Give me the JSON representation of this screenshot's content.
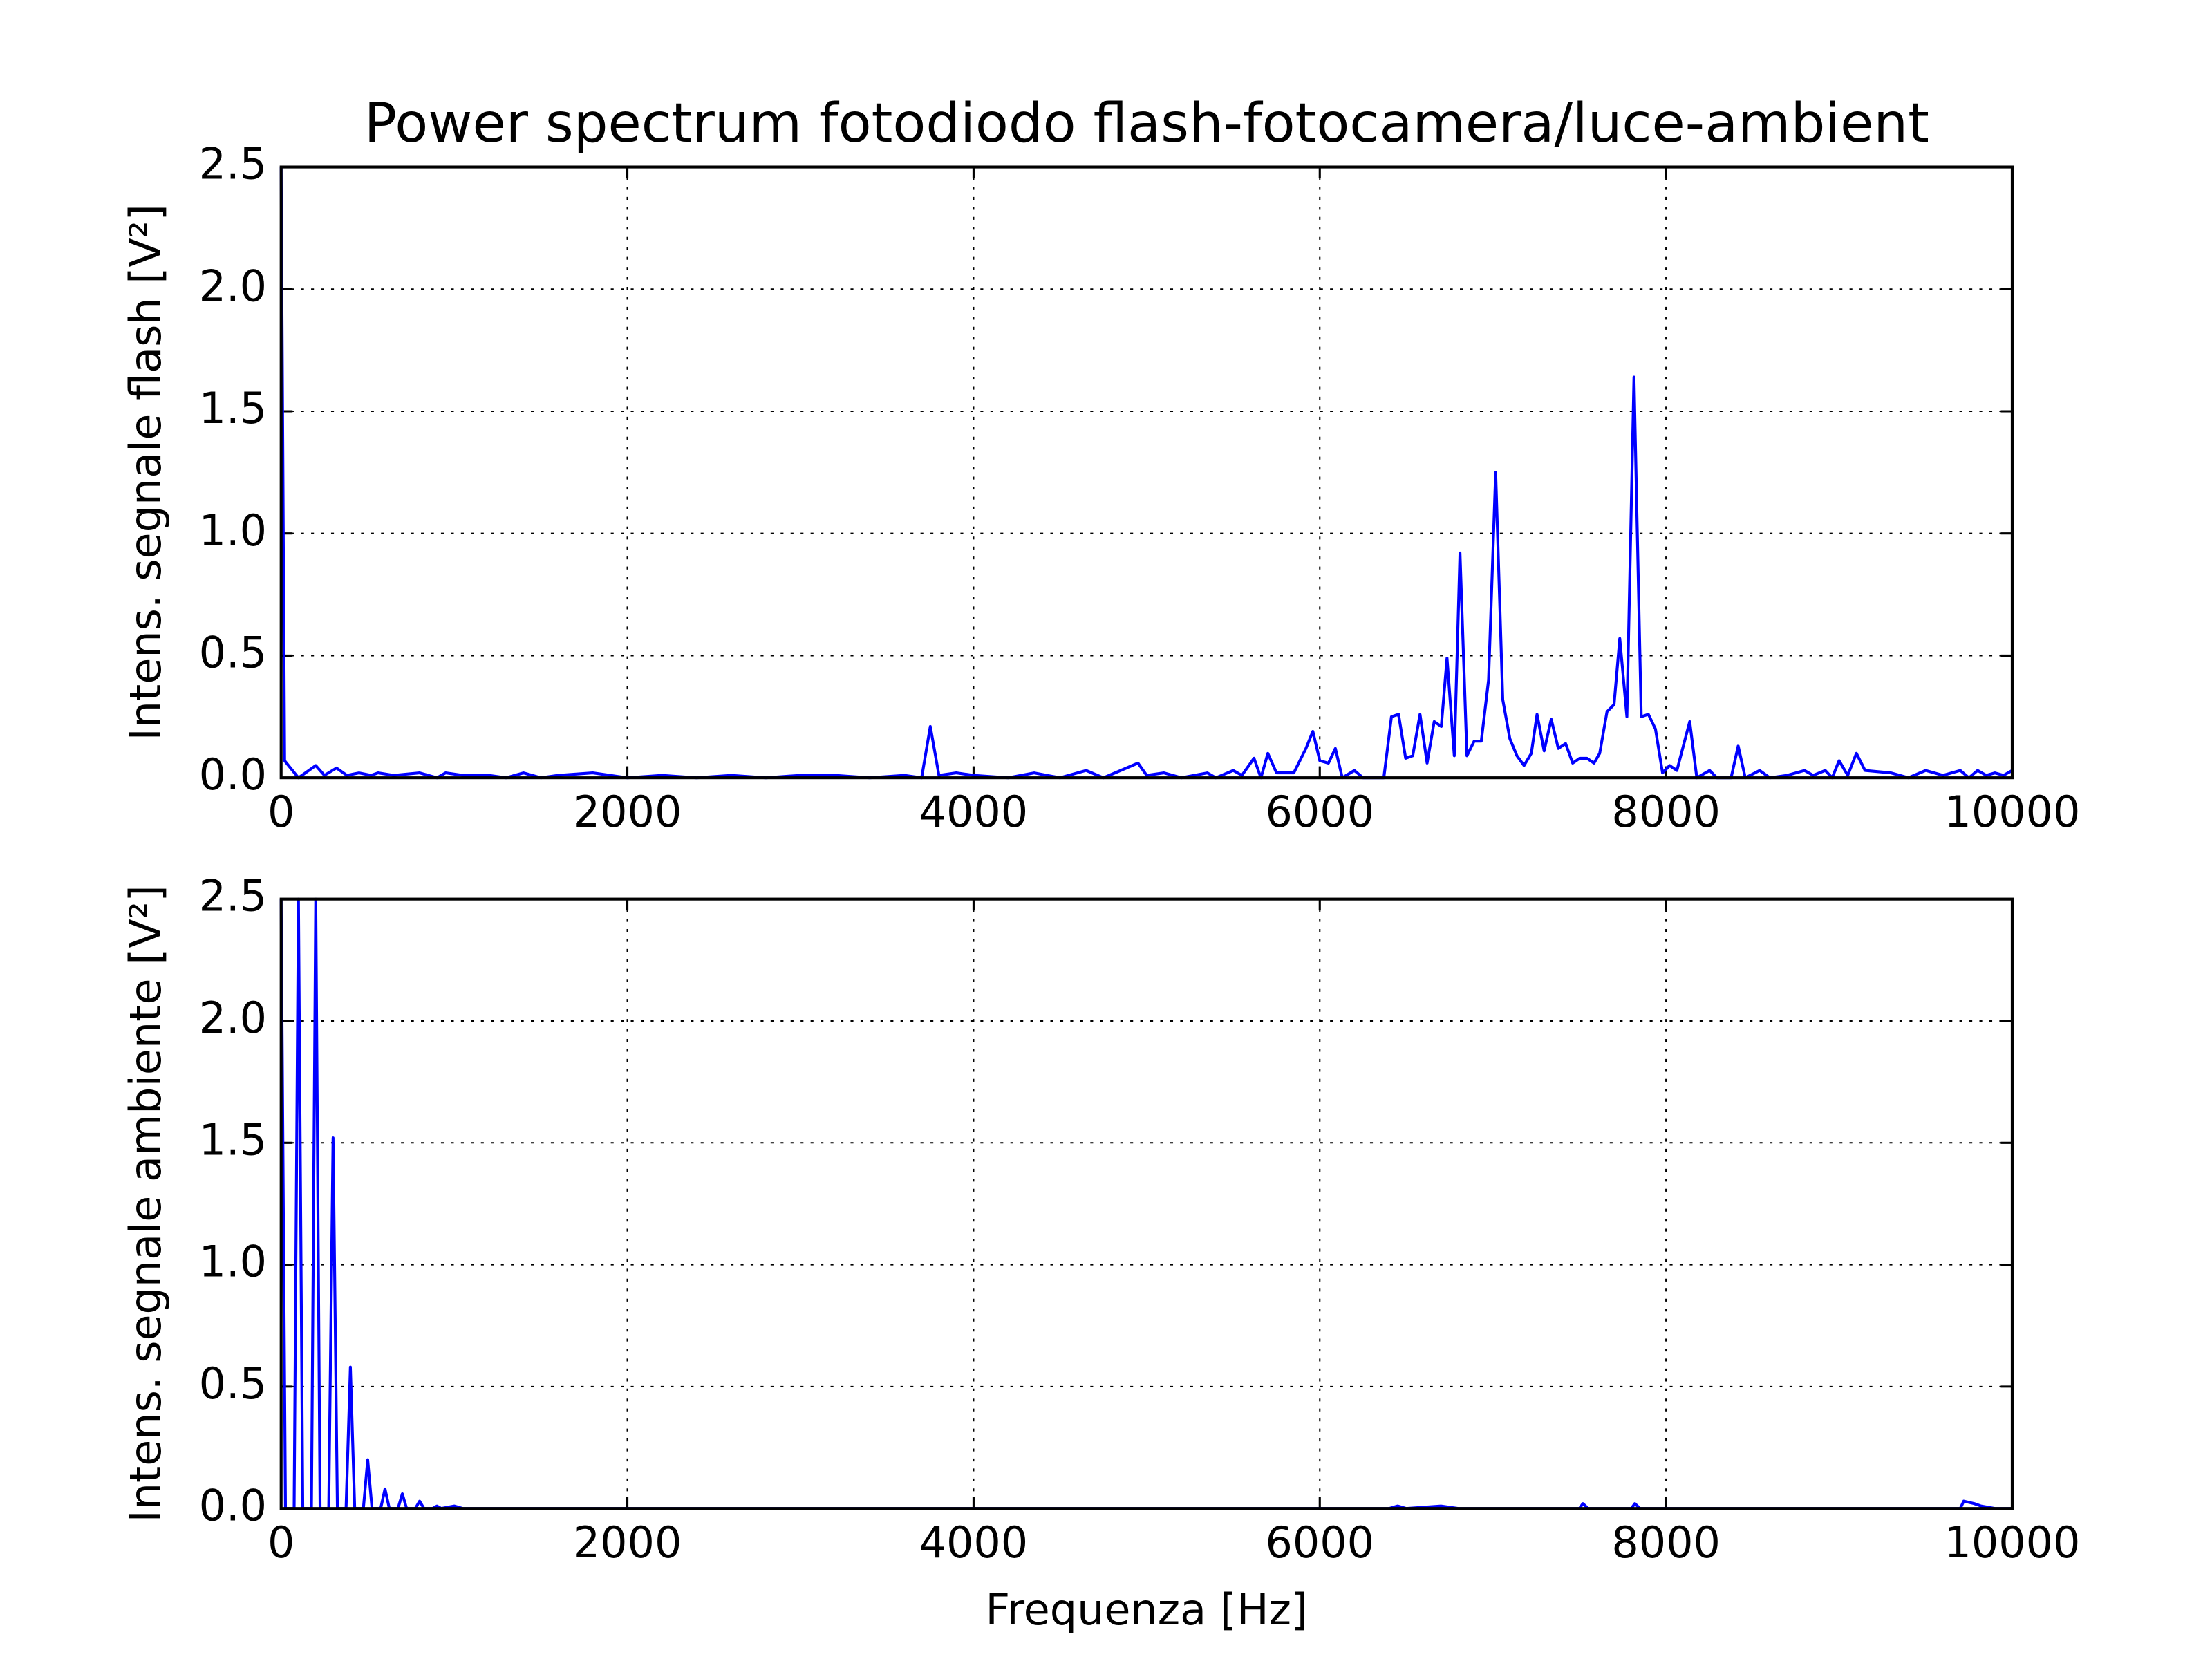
{
  "chart_data": [
    {
      "type": "line",
      "title": "Power spectrum fotodiodo flash-fotocamera/luce-ambient",
      "ylabel": "Intens. segnale flash [V²]",
      "x": [
        0,
        20,
        100,
        200,
        250,
        320,
        380,
        450,
        520,
        560,
        650,
        800,
        900,
        950,
        1050,
        1200,
        1300,
        1400,
        1500,
        1600,
        1800,
        2000,
        2200,
        2400,
        2600,
        2800,
        3000,
        3200,
        3400,
        3600,
        3700,
        3750,
        3800,
        3900,
        4000,
        4200,
        4350,
        4500,
        4650,
        4750,
        4950,
        5000,
        5100,
        5200,
        5350,
        5400,
        5500,
        5550,
        5620,
        5660,
        5700,
        5750,
        5850,
        5920,
        5960,
        6000,
        6050,
        6090,
        6130,
        6200,
        6250,
        6370,
        6414,
        6455,
        6496,
        6537,
        6579,
        6620,
        6661,
        6702,
        6735,
        6777,
        6810,
        6850,
        6892,
        6933,
        6975,
        7016,
        7057,
        7098,
        7139,
        7180,
        7222,
        7255,
        7296,
        7337,
        7378,
        7420,
        7461,
        7502,
        7543,
        7584,
        7617,
        7659,
        7700,
        7733,
        7774,
        7815,
        7857,
        7898,
        7939,
        7980,
        8021,
        8063,
        8137,
        8178,
        8252,
        8294,
        8376,
        8417,
        8458,
        8541,
        8600,
        8700,
        8800,
        8850,
        8920,
        8960,
        9000,
        9050,
        9100,
        9150,
        9300,
        9400,
        9500,
        9600,
        9700,
        9750,
        9800,
        9850,
        9900,
        9950,
        10000
      ],
      "series": [
        {
          "name": "flash",
          "color": "#0000ff",
          "values": [
            2.5,
            0.07,
            0,
            0.05,
            0.01,
            0.04,
            0.01,
            0.02,
            0.01,
            0.02,
            0.01,
            0.02,
            0,
            0.02,
            0.01,
            0.01,
            0,
            0.02,
            0,
            0.01,
            0.02,
            0,
            0.01,
            0,
            0.01,
            0,
            0.01,
            0.01,
            0,
            0.01,
            0,
            0.21,
            0.01,
            0.02,
            0.01,
            0,
            0.02,
            0,
            0.03,
            0,
            0.06,
            0.01,
            0.02,
            0,
            0.02,
            0,
            0.03,
            0.01,
            0.08,
            0,
            0.1,
            0.02,
            0.02,
            0.12,
            0.19,
            0.07,
            0.06,
            0.12,
            0,
            0.03,
            0,
            0,
            0.25,
            0.26,
            0.08,
            0.09,
            0.26,
            0.06,
            0.23,
            0.21,
            0.49,
            0.09,
            0.92,
            0.09,
            0.15,
            0.15,
            0.4,
            1.25,
            0.32,
            0.16,
            0.09,
            0.05,
            0.1,
            0.26,
            0.11,
            0.24,
            0.12,
            0.14,
            0.06,
            0.08,
            0.08,
            0.06,
            0.1,
            0.27,
            0.3,
            0.57,
            0.25,
            1.64,
            0.25,
            0.26,
            0.2,
            0.02,
            0.05,
            0.03,
            0.23,
            0,
            0.03,
            0,
            0,
            0.13,
            0,
            0.03,
            0,
            0.01,
            0.03,
            0.01,
            0.03,
            0,
            0.07,
            0.01,
            0.1,
            0.03,
            0.02,
            0,
            0.03,
            0.01,
            0.03,
            0,
            0.03,
            0.01,
            0.02,
            0.01,
            0.03
          ]
        }
      ],
      "xlim": [
        0,
        10000
      ],
      "xticks": [
        0,
        2000,
        4000,
        6000,
        8000,
        10000
      ],
      "ylim": [
        0,
        2.5
      ],
      "yticks": [
        {
          "value": 0,
          "label": "0.0"
        },
        0.5,
        {
          "value": 1,
          "label": "1.0"
        },
        1.5,
        {
          "value": 2,
          "label": "2.0"
        },
        2.5
      ],
      "grid": true
    },
    {
      "type": "line",
      "xlabel": "Frequenza [Hz]",
      "ylabel": "Intens. segnale ambiente [V²]",
      "x": [
        0,
        25,
        75,
        100,
        125,
        175,
        200,
        225,
        275,
        300,
        325,
        375,
        400,
        425,
        475,
        500,
        525,
        575,
        600,
        625,
        675,
        700,
        725,
        775,
        800,
        825,
        875,
        900,
        925,
        1000,
        1050,
        6400,
        6450,
        6500,
        6700,
        6800,
        7500,
        7520,
        7550,
        7800,
        7820,
        7850,
        9700,
        9720,
        9780,
        9820,
        9900,
        10000
      ],
      "series": [
        {
          "name": "ambiente",
          "color": "#0000ff",
          "values": [
            2.5,
            0,
            0,
            2.5,
            0,
            0,
            2.5,
            0,
            0,
            1.52,
            0,
            0,
            0.58,
            0,
            0,
            0.2,
            0,
            0,
            0.08,
            0,
            0,
            0.06,
            0,
            0,
            0.03,
            0,
            0,
            0.01,
            0,
            0.01,
            0,
            0,
            0.01,
            0,
            0.01,
            0,
            0,
            0.02,
            0,
            0,
            0.02,
            0,
            0,
            0.03,
            0.02,
            0.01,
            0,
            0
          ]
        }
      ],
      "xlim": [
        0,
        10000
      ],
      "xticks": [
        0,
        2000,
        4000,
        6000,
        8000,
        10000
      ],
      "ylim": [
        0,
        2.5
      ],
      "yticks": [
        {
          "value": 0,
          "label": "0.0"
        },
        0.5,
        {
          "value": 1,
          "label": "1.0"
        },
        1.5,
        {
          "value": 2,
          "label": "2.0"
        },
        2.5
      ],
      "grid": true
    }
  ]
}
